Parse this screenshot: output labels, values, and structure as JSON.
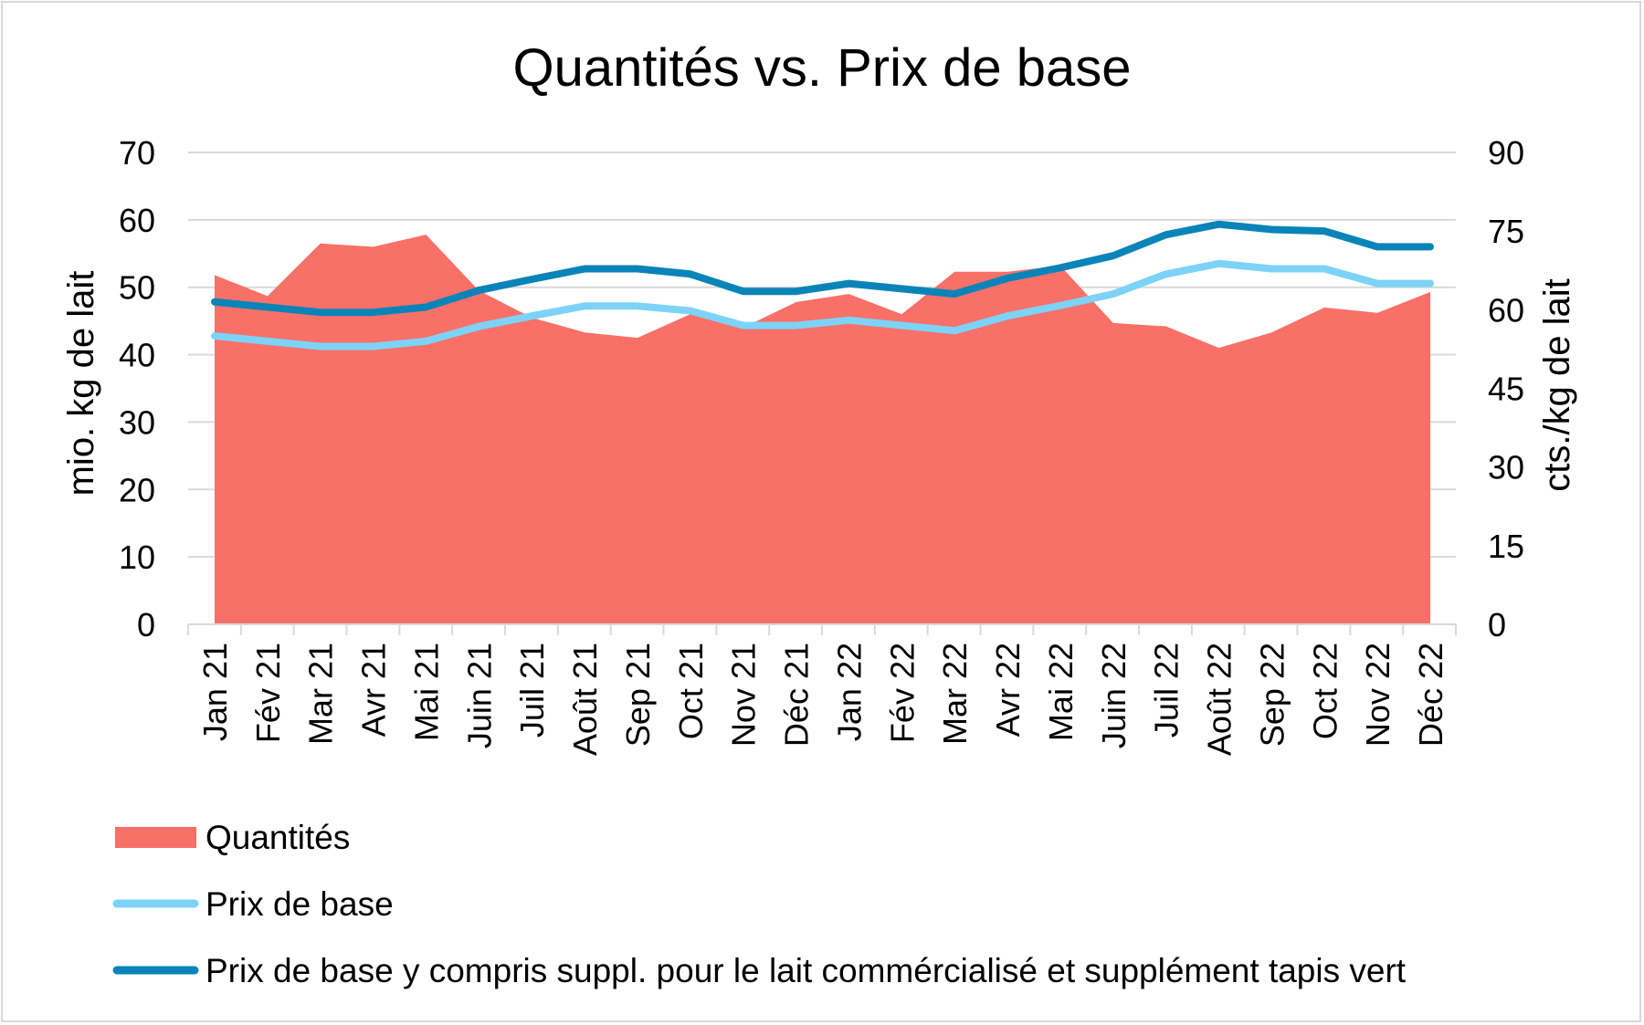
{
  "chart_data": {
    "type": "area+line",
    "title": "Quantités vs. Prix de base",
    "ylabel_left": "mio. kg de lait",
    "ylabel_right": "cts./kg de lait",
    "ylim_left": [
      0,
      70
    ],
    "ylim_right": [
      0,
      90
    ],
    "yticks_left": [
      "0",
      "10",
      "20",
      "30",
      "40",
      "50",
      "60",
      "70"
    ],
    "yticks_right": [
      "0",
      "15",
      "30",
      "45",
      "60",
      "75",
      "90"
    ],
    "grid": true,
    "legend_position": "bottom",
    "categories": [
      "Jan 21",
      "Fév 21",
      "Mar 21",
      "Avr 21",
      "Mai 21",
      "Juin 21",
      "Juil 21",
      "Août 21",
      "Sep 21",
      "Oct 21",
      "Nov 21",
      "Déc 21",
      "Jan 22",
      "Fév 22",
      "Mar 22",
      "Avr 22",
      "Mai 22",
      "Juin 22",
      "Juil 22",
      "Août 22",
      "Sep 22",
      "Oct 22",
      "Nov 22",
      "Déc 22"
    ],
    "series": [
      {
        "name": "Quantités",
        "type": "area",
        "axis": "left",
        "color": "#f87068",
        "values": [
          51.8,
          48.7,
          56.5,
          56.0,
          57.8,
          49.5,
          45.5,
          43.3,
          42.5,
          46.0,
          44.0,
          47.8,
          49.0,
          46.0,
          52.3,
          52.3,
          53.2,
          44.7,
          44.2,
          41.0,
          43.3,
          47.0,
          46.2,
          49.3
        ]
      },
      {
        "name": "Prix de base",
        "type": "line",
        "axis": "right",
        "color": "#7dd3f7",
        "values": [
          55.0,
          54.0,
          53.0,
          53.0,
          54.0,
          56.8,
          58.8,
          60.7,
          60.7,
          59.8,
          57.0,
          57.0,
          58.0,
          57.0,
          56.0,
          58.8,
          60.8,
          63.0,
          66.8,
          68.8,
          67.8,
          67.8,
          65.0,
          65.0
        ]
      },
      {
        "name": "Prix de base y compris suppl. pour le lait commércialisé et supplément tapis vert",
        "type": "line",
        "axis": "right",
        "color": "#0a84b8",
        "values": [
          61.5,
          60.5,
          59.5,
          59.5,
          60.5,
          63.7,
          65.8,
          67.8,
          67.8,
          66.8,
          63.5,
          63.5,
          65.0,
          64.0,
          63.0,
          66.0,
          68.0,
          70.3,
          74.3,
          76.3,
          75.3,
          75.0,
          72.0,
          72.0
        ]
      }
    ]
  }
}
